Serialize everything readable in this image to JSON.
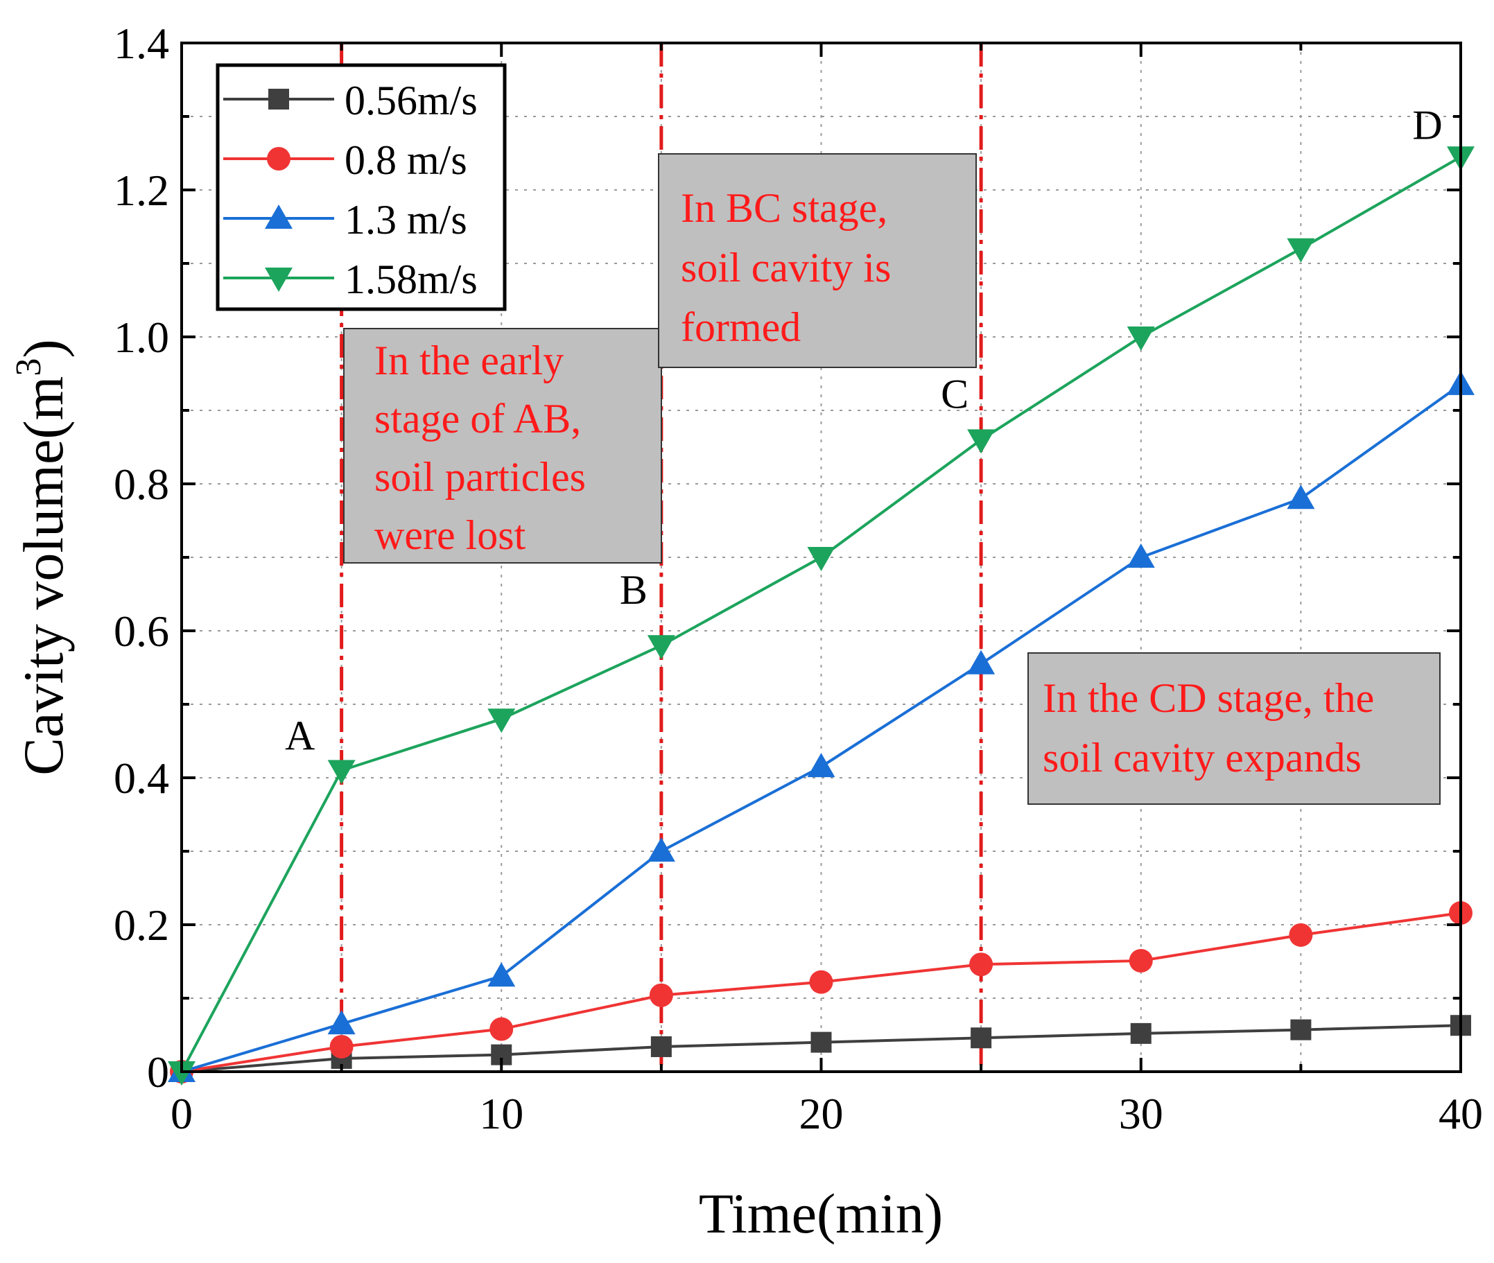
{
  "chart_data": {
    "type": "line",
    "title": "",
    "xlabel": "Time(min)",
    "ylabel": "Cavity volume(m",
    "ylabel_superscript": "3",
    "ylabel_close": ")",
    "xlim": [
      0,
      40
    ],
    "ylim": [
      0,
      1.4
    ],
    "xticks": [
      0,
      10,
      20,
      30,
      40
    ],
    "xtick_labels": [
      "0",
      "10",
      "20",
      "30",
      "40"
    ],
    "yticks": [
      0,
      0.2,
      0.4,
      0.6,
      0.8,
      1.0,
      1.2,
      1.4
    ],
    "ytick_labels": [
      "0",
      "0.2",
      "0.4",
      "0.6",
      "0.8",
      "1.0",
      "1.2",
      "1.4"
    ],
    "grid": true,
    "legend_position": "top-left",
    "series": [
      {
        "name": "0.56m/s",
        "color": "#3f3f3f",
        "marker": "square",
        "x": [
          0,
          5,
          10,
          15,
          20,
          25,
          30,
          35,
          40
        ],
        "values": [
          0,
          0.018,
          0.023,
          0.034,
          0.04,
          0.046,
          0.052,
          0.057,
          0.063
        ]
      },
      {
        "name": "0.8 m/s",
        "color": "#f03434",
        "marker": "circle",
        "x": [
          0,
          5,
          10,
          15,
          20,
          25,
          30,
          35,
          40
        ],
        "values": [
          0,
          0.034,
          0.058,
          0.104,
          0.122,
          0.146,
          0.151,
          0.186,
          0.216
        ]
      },
      {
        "name": "1.3 m/s",
        "color": "#1a6fd6",
        "marker": "triangle-up",
        "x": [
          0,
          5,
          10,
          15,
          20,
          25,
          30,
          35,
          40
        ],
        "values": [
          0,
          0.065,
          0.13,
          0.3,
          0.415,
          0.555,
          0.7,
          0.78,
          0.935
        ]
      },
      {
        "name": "1.58m/s",
        "color": "#1ca45c",
        "marker": "triangle-down",
        "x": [
          0,
          5,
          10,
          15,
          20,
          25,
          30,
          35,
          40
        ],
        "values": [
          0,
          0.41,
          0.48,
          0.58,
          0.7,
          0.86,
          1.0,
          1.12,
          1.245
        ]
      }
    ],
    "stage_lines": {
      "color": "#e21b1b",
      "x": [
        5,
        15,
        25
      ]
    },
    "point_labels": [
      {
        "text": "A",
        "x": 5,
        "y": 0.41
      },
      {
        "text": "B",
        "x": 15,
        "y": 0.58
      },
      {
        "text": "C",
        "x": 25,
        "y": 0.86
      },
      {
        "text": "D",
        "x": 40,
        "y": 1.245
      }
    ],
    "annotations": [
      {
        "lines": [
          "In the early",
          "stage of AB,",
          "soil particles",
          "were lost"
        ]
      },
      {
        "lines": [
          "In BC stage,",
          "soil cavity is",
          "formed"
        ]
      },
      {
        "lines": [
          "In the CD stage, the",
          "soil cavity expands"
        ]
      }
    ],
    "annotation_fill": "#bfbfbf",
    "annotation_text_color": "#ff1a1a"
  }
}
